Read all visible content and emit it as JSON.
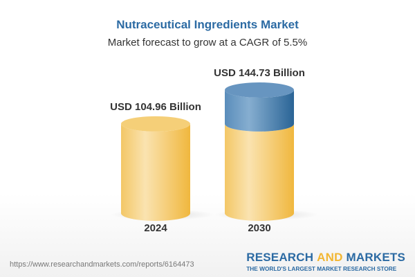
{
  "title": "Nutraceutical Ingredients Market",
  "subtitle": "Market forecast to grow at a CAGR of 5.5%",
  "chart_data": {
    "type": "bar",
    "style": "3d-cylinder",
    "categories": [
      "2024",
      "2030"
    ],
    "values": [
      104.96,
      144.73
    ],
    "data_labels": [
      "USD 104.96 Billion",
      "USD 144.73 Billion"
    ],
    "unit": "USD Billion",
    "colors": {
      "base": "#f3c65e",
      "growth": "#4a7fb0"
    }
  },
  "footer": {
    "url": "https://www.researchandmarkets.com/reports/6164473",
    "logo_part1": "RESEARCH ",
    "logo_part2": "AND",
    "logo_part3": " MARKETS",
    "tagline": "THE WORLD'S LARGEST MARKET RESEARCH STORE"
  }
}
